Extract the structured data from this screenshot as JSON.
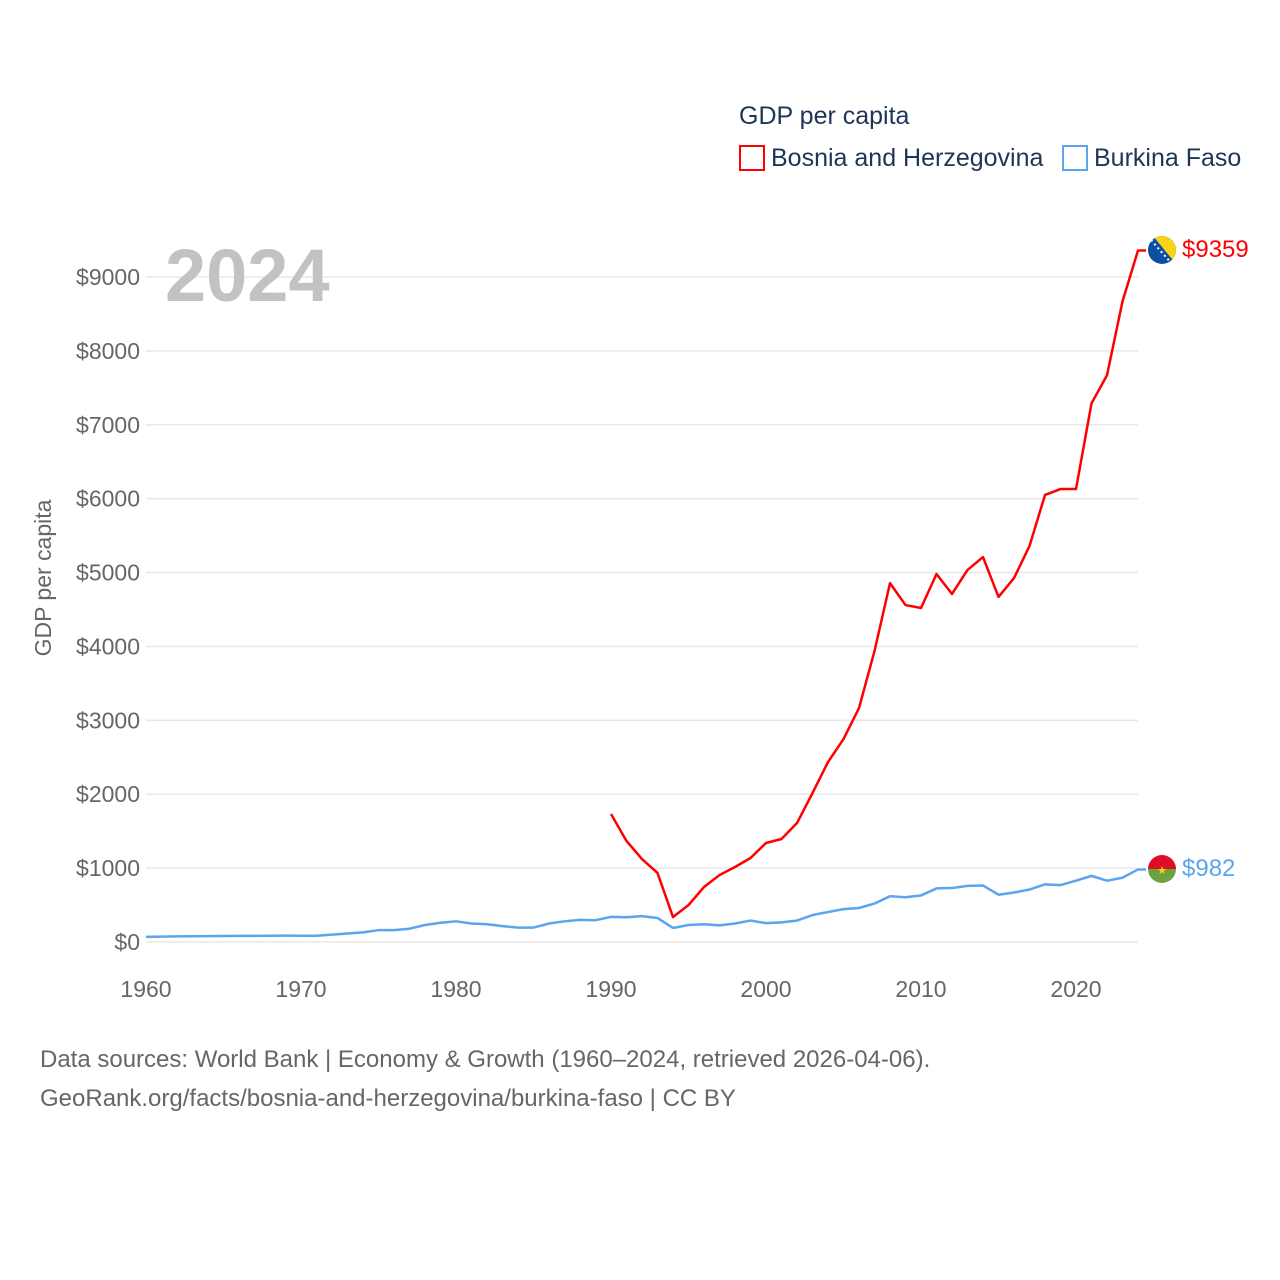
{
  "chart_data": {
    "type": "line",
    "title": "GDP per capita",
    "ylabel": "GDP per capita",
    "xlabel": "",
    "year_watermark": "2024",
    "xlim": [
      1960,
      2024
    ],
    "ylim": [
      0,
      9000
    ],
    "x_ticks": [
      "1960",
      "1970",
      "1980",
      "1990",
      "2000",
      "2010",
      "2020"
    ],
    "y_ticks": [
      "$0",
      "$1000",
      "$2000",
      "$3000",
      "$4000",
      "$5000",
      "$6000",
      "$7000",
      "$8000",
      "$9000"
    ],
    "grid": true,
    "legend_position": "top-right",
    "series": [
      {
        "name": "Bosnia and Herzegovina",
        "color": "#ff0000",
        "end_label": "$9359",
        "flag": "bosnia-flag",
        "start_year": 1990,
        "values": [
          1732,
          1367,
          1123,
          934,
          338,
          500,
          744,
          906,
          1015,
          1137,
          1340,
          1394,
          1610,
          2016,
          2435,
          2747,
          3166,
          3937,
          4857,
          4560,
          4520,
          4980,
          4710,
          5035,
          5210,
          4670,
          4925,
          5360,
          6050,
          6130,
          6130,
          7290,
          7670,
          8670,
          9359
        ]
      },
      {
        "name": "Burkina Faso",
        "color": "#5aa5ee",
        "end_label": "$982",
        "flag": "burkina-faso-flag",
        "start_year": 1960,
        "values": [
          70,
          72,
          76,
          78,
          80,
          82,
          83,
          83,
          84,
          86,
          85,
          85,
          100,
          115,
          130,
          160,
          160,
          180,
          230,
          260,
          280,
          250,
          240,
          215,
          195,
          195,
          250,
          280,
          300,
          295,
          340,
          335,
          350,
          325,
          190,
          230,
          240,
          225,
          250,
          290,
          255,
          265,
          290,
          365,
          405,
          445,
          460,
          520,
          620,
          605,
          630,
          725,
          730,
          760,
          765,
          640,
          670,
          710,
          780,
          770,
          830,
          895,
          830,
          870,
          982
        ]
      }
    ]
  },
  "footer": {
    "line1": "Data sources: World Bank | Economy & Growth (1960–2024, retrieved 2026-04-06).",
    "line2": "GeoRank.org/facts/bosnia-and-herzegovina/burkina-faso | CC BY"
  }
}
